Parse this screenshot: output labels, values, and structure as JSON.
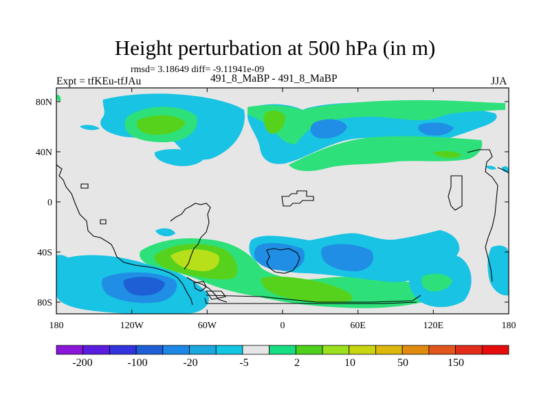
{
  "title": "Height perturbation at 500 hPa (in m)",
  "stats": "rmsd= 3.18649 diff= -9.11941e-09",
  "left_label": "Expt = tfKEu-tfJAu",
  "center_label": "491_8_MaBP - 491_8_MaBP",
  "right_label": "JJA",
  "lon_ticks": [
    "180",
    "120W",
    "60W",
    "0",
    "60E",
    "120E",
    "180"
  ],
  "lat_ticks": [
    "80N",
    "40N",
    "0",
    "40S",
    "80S"
  ],
  "colorbar": {
    "colors": [
      "#8a16d9",
      "#5a1ce0",
      "#3333e0",
      "#1f5fd6",
      "#1e88e6",
      "#19a9de",
      "#11c5e5",
      "#e6e6e6",
      "#17de82",
      "#4dd11c",
      "#9be01c",
      "#c9d50f",
      "#dcb70d",
      "#e08a10",
      "#e3561b",
      "#e42c1a",
      "#e80b0b"
    ],
    "labels": [
      "-200",
      "-100",
      "-20",
      "-5",
      "2",
      "10",
      "50",
      "150"
    ]
  }
}
